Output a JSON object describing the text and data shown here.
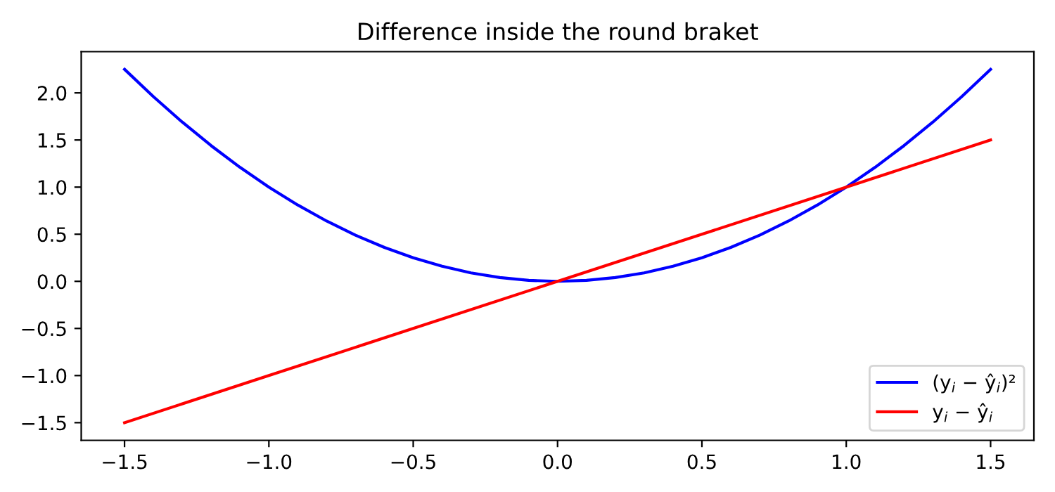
{
  "chart_data": {
    "type": "line",
    "title": "Difference inside the round braket",
    "series": [
      {
        "name": "(y$_{i}$ − ŷ$_{i}$)²",
        "color": "#0000ff",
        "x": [
          -1.5,
          -1.4,
          -1.3,
          -1.2,
          -1.1,
          -1.0,
          -0.9,
          -0.8,
          -0.7,
          -0.6,
          -0.5,
          -0.4,
          -0.3,
          -0.2,
          -0.1,
          0.0,
          0.1,
          0.2,
          0.3,
          0.4,
          0.5,
          0.6,
          0.7,
          0.8,
          0.9,
          1.0,
          1.1,
          1.2,
          1.3,
          1.4,
          1.5
        ],
        "values": [
          2.25,
          1.96,
          1.69,
          1.44,
          1.21,
          1.0,
          0.81,
          0.64,
          0.49,
          0.36,
          0.25,
          0.16,
          0.09,
          0.04,
          0.01,
          0.0,
          0.01,
          0.04,
          0.09,
          0.16,
          0.25,
          0.36,
          0.49,
          0.64,
          0.81,
          1.0,
          1.21,
          1.44,
          1.69,
          1.96,
          2.25
        ]
      },
      {
        "name": "y$_{i}$ − ŷ$_{i}$",
        "color": "#ff0000",
        "x": [
          -1.5,
          -1.0,
          -0.5,
          0.0,
          0.5,
          1.0,
          1.5
        ],
        "values": [
          -1.5,
          -1.0,
          -0.5,
          0.0,
          0.5,
          1.0,
          1.5
        ]
      }
    ],
    "xlim": [
      -1.65,
      1.65
    ],
    "ylim": [
      -1.6875,
      2.4375
    ],
    "xticks": [
      {
        "value": -1.5,
        "label": "−1.5"
      },
      {
        "value": -1.0,
        "label": "−1.0"
      },
      {
        "value": -0.5,
        "label": "−0.5"
      },
      {
        "value": 0.0,
        "label": "0.0"
      },
      {
        "value": 0.5,
        "label": "0.5"
      },
      {
        "value": 1.0,
        "label": "1.0"
      },
      {
        "value": 1.5,
        "label": "1.5"
      }
    ],
    "yticks": [
      {
        "value": -1.5,
        "label": "−1.5"
      },
      {
        "value": -1.0,
        "label": "−1.0"
      },
      {
        "value": -0.5,
        "label": "−0.5"
      },
      {
        "value": 0.0,
        "label": "0.0"
      },
      {
        "value": 0.5,
        "label": "0.5"
      },
      {
        "value": 1.0,
        "label": "1.0"
      },
      {
        "value": 1.5,
        "label": "1.5"
      },
      {
        "value": 2.0,
        "label": "2.0"
      }
    ],
    "legend": "bottom right",
    "grid": false,
    "marker": "none",
    "line_style": "solid"
  }
}
